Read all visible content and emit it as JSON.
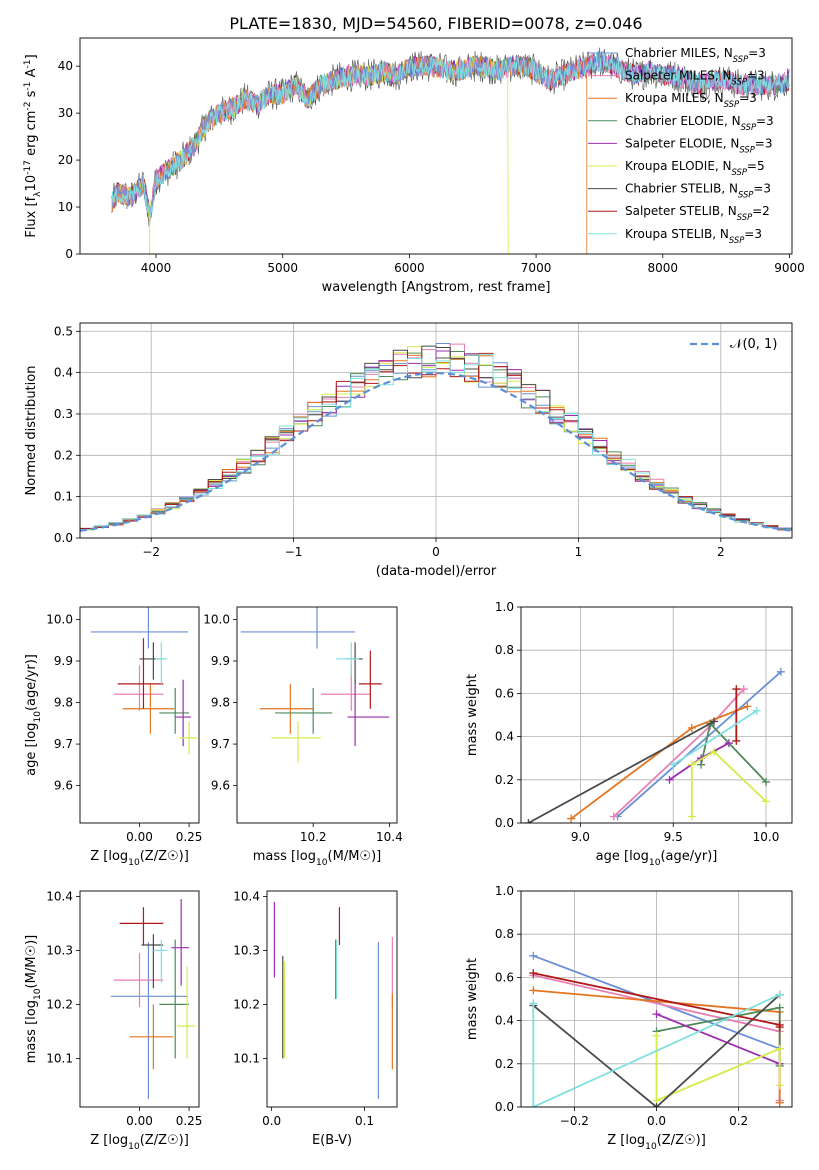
{
  "figure": {
    "title": "PLATE=1830, MJD=54560, FIBERID=0078, z=0.046"
  },
  "colors": {
    "chabrier_miles": "#6b8fd6",
    "salpeter_miles": "#e87fb4",
    "kroupa_miles": "#e37520",
    "chabrier_elodie": "#4f8a5a",
    "salpeter_elodie": "#9b2db0",
    "kroupa_elodie": "#d4ec4a",
    "chabrier_stelib": "#4a4a4a",
    "salpeter_stelib": "#b01818",
    "kroupa_stelib": "#7fe0e0",
    "normal": "#5b8fd9"
  },
  "chart_data": [
    {
      "id": "spectrum",
      "type": "line",
      "xlabel": "wavelength [Angstrom, rest frame]",
      "ylabel": "Flux [f_λ10^-17 erg cm^-2 s^-1 A^-1]",
      "xlim": [
        3400,
        9020
      ],
      "ylim": [
        0,
        46
      ],
      "xticks": [
        4000,
        5000,
        6000,
        7000,
        8000,
        9000
      ],
      "yticks": [
        0,
        10,
        20,
        30,
        40
      ],
      "grid": false,
      "legend_position": "right",
      "x": [
        3650,
        3700,
        3800,
        3900,
        3950,
        4000,
        4100,
        4200,
        4300,
        4400,
        4500,
        4600,
        4700,
        4800,
        4900,
        5000,
        5100,
        5200,
        5300,
        5400,
        5500,
        5600,
        5700,
        5800,
        5900,
        6000,
        6100,
        6200,
        6300,
        6400,
        6500,
        6600,
        6700,
        6800,
        6900,
        7000,
        7100,
        7200,
        7300,
        7400,
        7500,
        7600,
        7700,
        7800,
        7900,
        8000,
        8100,
        8200,
        8300,
        8400,
        8500,
        8600,
        8700,
        8800,
        8900,
        9000
      ],
      "y": [
        11,
        13,
        12,
        15,
        8,
        16,
        18,
        20,
        23,
        28,
        30,
        31,
        33,
        32,
        34,
        34,
        36,
        33,
        36,
        37,
        38,
        38,
        38,
        39,
        38,
        40,
        40,
        40,
        39,
        39,
        40,
        40,
        39,
        40,
        40,
        39,
        37,
        38,
        39,
        40,
        41,
        40,
        39,
        38,
        39,
        38,
        38,
        37,
        36,
        37,
        37,
        36,
        36,
        36,
        36,
        37
      ],
      "dropouts": [
        {
          "series": "Kroupa MILES",
          "x": 7400
        },
        {
          "series": "Kroupa ELODIE",
          "x": 6780
        },
        {
          "series": "Kroupa MILES",
          "x": 3950
        }
      ],
      "series": [
        {
          "name": "Chabrier MILES, N_SSP=3",
          "color_key": "chabrier_miles"
        },
        {
          "name": "Salpeter MILES, N_SSP=3",
          "color_key": "salpeter_miles"
        },
        {
          "name": "Kroupa MILES, N_SSP=3",
          "color_key": "kroupa_miles"
        },
        {
          "name": "Chabrier ELODIE, N_SSP=3",
          "color_key": "chabrier_elodie"
        },
        {
          "name": "Salpeter ELODIE, N_SSP=3",
          "color_key": "salpeter_elodie"
        },
        {
          "name": "Kroupa ELODIE, N_SSP=5",
          "color_key": "kroupa_elodie"
        },
        {
          "name": "Chabrier STELIB, N_SSP=3",
          "color_key": "chabrier_stelib"
        },
        {
          "name": "Salpeter STELIB, N_SSP=2",
          "color_key": "salpeter_stelib"
        },
        {
          "name": "Kroupa STELIB, N_SSP=3",
          "color_key": "kroupa_stelib"
        }
      ]
    },
    {
      "id": "residuals",
      "type": "histogram",
      "xlabel": "(data-model)/error",
      "ylabel": "Normed distribution",
      "xlim": [
        -2.5,
        2.5
      ],
      "ylim": [
        0,
        0.52
      ],
      "xticks": [
        -2,
        -1,
        0,
        1,
        2
      ],
      "yticks": [
        0.0,
        0.1,
        0.2,
        0.3,
        0.4,
        0.5
      ],
      "grid": true,
      "legend_position": "top-right",
      "legend": [
        "𝒩(0, 1)"
      ],
      "bin_width": 0.1,
      "reference_curve": "standard normal density"
    },
    {
      "id": "age_vs_Z",
      "type": "scatter",
      "xlabel": "Z [log10(Z/Z☉)]",
      "ylabel": "age  [log10(age/yr)]",
      "xlim": [
        -0.3,
        0.3
      ],
      "ylim": [
        9.51,
        10.03
      ],
      "xticks": [
        0.0,
        0.25
      ],
      "yticks": [
        9.6,
        9.7,
        9.8,
        9.9,
        10.0
      ],
      "points": [
        {
          "s": "chabrier_miles",
          "x": 0.045,
          "y": 9.97,
          "xerr": [
            0.29,
            0.2
          ],
          "yerr": [
            0.04,
            0.44
          ]
        },
        {
          "s": "salpeter_miles",
          "x": 0.0,
          "y": 9.82,
          "xerr": [
            0.13,
            0.12
          ],
          "yerr": [
            0.04,
            0.07
          ]
        },
        {
          "s": "kroupa_miles",
          "x": 0.055,
          "y": 9.785,
          "xerr": [
            0.14,
            0.12
          ],
          "yerr": [
            0.06,
            0.06
          ]
        },
        {
          "s": "chabrier_elodie",
          "x": 0.18,
          "y": 9.775,
          "xerr": [
            0.08,
            0.07
          ],
          "yerr": [
            0.05,
            0.06
          ]
        },
        {
          "s": "salpeter_elodie",
          "x": 0.22,
          "y": 9.765,
          "xerr": [
            0.04,
            0.04
          ],
          "yerr": [
            0.07,
            0.09
          ]
        },
        {
          "s": "kroupa_elodie",
          "x": 0.25,
          "y": 9.715,
          "xerr": [
            0.05,
            0.04
          ],
          "yerr": [
            0.04,
            0.04
          ]
        },
        {
          "s": "chabrier_stelib",
          "x": 0.07,
          "y": 9.905,
          "xerr": [
            0.07,
            0.05
          ],
          "yerr": [
            0.05,
            0.04
          ]
        },
        {
          "s": "salpeter_stelib",
          "x": 0.02,
          "y": 9.845,
          "xerr": [
            0.13,
            0.1
          ],
          "yerr": [
            0.06,
            0.11
          ]
        },
        {
          "s": "kroupa_stelib",
          "x": 0.11,
          "y": 9.905,
          "xerr": [
            0.03,
            0.03
          ],
          "yerr": [
            0.06,
            0.04
          ]
        }
      ]
    },
    {
      "id": "age_vs_mass",
      "type": "scatter",
      "xlabel": "mass [log10(M/M☉)]",
      "ylabel": "",
      "xlim": [
        10.0,
        10.42
      ],
      "ylim": [
        9.51,
        10.03
      ],
      "xticks": [
        10.2,
        10.4
      ],
      "yticks": [
        9.6,
        9.7,
        9.8,
        9.9,
        10.0
      ],
      "points": [
        {
          "s": "chabrier_miles",
          "x": 10.21,
          "y": 9.97,
          "xerr": [
            0.2,
            0.1
          ],
          "yerr": [
            0.04,
            0.44
          ]
        },
        {
          "s": "salpeter_miles",
          "x": 10.3,
          "y": 9.82,
          "xerr": [
            0.08,
            0.05
          ],
          "yerr": [
            0.04,
            0.07
          ]
        },
        {
          "s": "kroupa_miles",
          "x": 10.14,
          "y": 9.785,
          "xerr": [
            0.08,
            0.06
          ],
          "yerr": [
            0.06,
            0.06
          ]
        },
        {
          "s": "chabrier_elodie",
          "x": 10.2,
          "y": 9.775,
          "xerr": [
            0.1,
            0.05
          ],
          "yerr": [
            0.05,
            0.06
          ]
        },
        {
          "s": "salpeter_elodie",
          "x": 10.31,
          "y": 9.765,
          "xerr": [
            0.02,
            0.09
          ],
          "yerr": [
            0.07,
            0.09
          ]
        },
        {
          "s": "kroupa_elodie",
          "x": 10.16,
          "y": 9.715,
          "xerr": [
            0.07,
            0.06
          ],
          "yerr": [
            0.06,
            0.04
          ]
        },
        {
          "s": "chabrier_stelib",
          "x": 10.31,
          "y": 9.905,
          "xerr": [
            0.03,
            0.02
          ],
          "yerr": [
            0.06,
            0.04
          ]
        },
        {
          "s": "salpeter_stelib",
          "x": 10.35,
          "y": 9.845,
          "xerr": [
            0.03,
            0.03
          ],
          "yerr": [
            0.06,
            0.08
          ]
        },
        {
          "s": "kroupa_stelib",
          "x": 10.3,
          "y": 9.905,
          "xerr": [
            0.04,
            0.02
          ],
          "yerr": [
            0.04,
            0.04
          ]
        }
      ]
    },
    {
      "id": "weight_vs_age",
      "type": "line",
      "xlabel": "age  [log10(age/yr)]",
      "ylabel": "mass weight",
      "xlim": [
        8.68,
        10.14
      ],
      "ylim": [
        0.0,
        1.0
      ],
      "xticks": [
        9.0,
        9.5,
        10.0
      ],
      "yticks": [
        0.0,
        0.2,
        0.4,
        0.6,
        0.8,
        1.0
      ],
      "grid": true,
      "series": [
        {
          "s": "chabrier_miles",
          "x": [
            9.2,
            10.08
          ],
          "y": [
            0.03,
            0.7
          ]
        },
        {
          "s": "salpeter_miles",
          "x": [
            9.18,
            9.7,
            9.88
          ],
          "y": [
            0.03,
            0.45,
            0.62
          ]
        },
        {
          "s": "kroupa_miles",
          "x": [
            8.95,
            9.6,
            9.9
          ],
          "y": [
            0.02,
            0.44,
            0.54
          ]
        },
        {
          "s": "chabrier_elodie",
          "x": [
            9.65,
            9.7,
            10.0
          ],
          "y": [
            0.27,
            0.46,
            0.19
          ]
        },
        {
          "s": "salpeter_elodie",
          "x": [
            9.48,
            9.65,
            9.8
          ],
          "y": [
            0.2,
            0.3,
            0.37
          ]
        },
        {
          "s": "kroupa_elodie",
          "x": [
            9.6,
            9.6,
            9.72,
            10.0
          ],
          "y": [
            0.03,
            0.27,
            0.33,
            0.1
          ]
        },
        {
          "s": "chabrier_stelib",
          "x": [
            8.72,
            9.72
          ],
          "y": [
            0.0,
            0.47
          ]
        },
        {
          "s": "salpeter_stelib",
          "x": [
            9.84,
            9.84
          ],
          "y": [
            0.38,
            0.62
          ]
        },
        {
          "s": "kroupa_stelib",
          "x": [
            9.5,
            9.95
          ],
          "y": [
            0.27,
            0.52
          ]
        }
      ]
    },
    {
      "id": "mass_vs_Z",
      "type": "scatter",
      "xlabel": "Z [log10(Z/Z☉)]",
      "ylabel": "mass [log10(M/M☉)]",
      "xlim": [
        -0.3,
        0.3
      ],
      "ylim": [
        10.01,
        10.41
      ],
      "xticks": [
        0.0,
        0.25
      ],
      "yticks": [
        10.1,
        10.2,
        10.3,
        10.4
      ],
      "points": [
        {
          "s": "chabrier_miles",
          "x": 0.045,
          "y": 10.215,
          "xerr": [
            0.19,
            0.2
          ],
          "yerr": [
            0.19,
            0.1
          ]
        },
        {
          "s": "salpeter_miles",
          "x": 0.0,
          "y": 10.245,
          "xerr": [
            0.13,
            0.12
          ],
          "yerr": [
            0.05,
            0.05
          ]
        },
        {
          "s": "kroupa_miles",
          "x": 0.07,
          "y": 10.14,
          "xerr": [
            0.12,
            0.1
          ],
          "yerr": [
            0.06,
            0.06
          ]
        },
        {
          "s": "chabrier_elodie",
          "x": 0.18,
          "y": 10.2,
          "xerr": [
            0.08,
            0.07
          ],
          "yerr": [
            0.1,
            0.12
          ]
        },
        {
          "s": "salpeter_elodie",
          "x": 0.21,
          "y": 10.305,
          "xerr": [
            0.05,
            0.04
          ],
          "yerr": [
            0.07,
            0.09
          ]
        },
        {
          "s": "kroupa_elodie",
          "x": 0.24,
          "y": 10.16,
          "xerr": [
            0.05,
            0.04
          ],
          "yerr": [
            0.06,
            0.11
          ]
        },
        {
          "s": "chabrier_stelib",
          "x": 0.07,
          "y": 10.31,
          "xerr": [
            0.06,
            0.05
          ],
          "yerr": [
            0.08,
            0.02
          ]
        },
        {
          "s": "salpeter_stelib",
          "x": 0.02,
          "y": 10.35,
          "xerr": [
            0.12,
            0.1
          ],
          "yerr": [
            0.04,
            0.03
          ]
        },
        {
          "s": "kroupa_stelib",
          "x": 0.11,
          "y": 10.3,
          "xerr": [
            0.04,
            0.03
          ],
          "yerr": [
            0.06,
            0.02
          ]
        }
      ]
    },
    {
      "id": "mass_vs_ebv",
      "type": "scatter",
      "xlabel": "E(B-V)",
      "ylabel": "",
      "xlim": [
        -0.005,
        0.135
      ],
      "ylim": [
        10.01,
        10.41
      ],
      "xticks": [
        0.0,
        0.1
      ],
      "yticks": [
        10.1,
        10.2,
        10.3,
        10.4
      ],
      "points": [
        {
          "s": "chabrier_miles",
          "x": 0.115,
          "y": 10.215,
          "xerr": [
            0.0,
            0.0
          ],
          "yerr": [
            0.19,
            0.1
          ]
        },
        {
          "s": "salpeter_miles",
          "x": 0.13,
          "y": 10.245,
          "xerr": [
            0.0,
            0.0
          ],
          "yerr": [
            0.05,
            0.08
          ]
        },
        {
          "s": "kroupa_miles",
          "x": 0.13,
          "y": 10.14,
          "xerr": [
            0.0,
            0.0
          ],
          "yerr": [
            0.06,
            0.08
          ]
        },
        {
          "s": "chabrier_elodie",
          "x": 0.069,
          "y": 10.25,
          "xerr": [
            0.0,
            0.0
          ],
          "yerr": [
            0.04,
            0.07
          ]
        },
        {
          "s": "salpeter_elodie",
          "x": 0.003,
          "y": 10.33,
          "xerr": [
            0.0,
            0.0
          ],
          "yerr": [
            0.08,
            0.06
          ]
        },
        {
          "s": "kroupa_elodie",
          "x": 0.014,
          "y": 10.2,
          "xerr": [
            0.0,
            0.0
          ],
          "yerr": [
            0.1,
            0.08
          ]
        },
        {
          "s": "chabrier_stelib",
          "x": 0.012,
          "y": 10.2,
          "xerr": [
            0.0,
            0.0
          ],
          "yerr": [
            0.1,
            0.09
          ]
        },
        {
          "s": "salpeter_stelib",
          "x": 0.073,
          "y": 10.34,
          "xerr": [
            0.0,
            0.0
          ],
          "yerr": [
            0.03,
            0.04
          ]
        },
        {
          "s": "kroupa_stelib",
          "x": 0.07,
          "y": 10.26,
          "xerr": [
            0.0,
            0.0
          ],
          "yerr": [
            0.05,
            0.06
          ]
        }
      ]
    },
    {
      "id": "weight_vs_Z",
      "type": "line",
      "xlabel": "Z [log10(Z/Z☉)]",
      "ylabel": "mass weight",
      "xlim": [
        -0.33,
        0.33
      ],
      "ylim": [
        0.0,
        1.0
      ],
      "xticks": [
        -0.2,
        0.0,
        0.2
      ],
      "yticks": [
        0.0,
        0.2,
        0.4,
        0.6,
        0.8,
        1.0
      ],
      "grid": true,
      "series": [
        {
          "s": "chabrier_miles",
          "x": [
            -0.3,
            0.3
          ],
          "y": [
            0.7,
            0.27
          ]
        },
        {
          "s": "salpeter_miles",
          "x": [
            -0.3,
            0.3,
            0.3
          ],
          "y": [
            0.61,
            0.35,
            0.03
          ]
        },
        {
          "s": "kroupa_miles",
          "x": [
            -0.3,
            0.3,
            0.3
          ],
          "y": [
            0.54,
            0.44,
            0.02
          ]
        },
        {
          "s": "chabrier_elodie",
          "x": [
            0.0,
            0.3,
            0.3
          ],
          "y": [
            0.35,
            0.46,
            0.19
          ]
        },
        {
          "s": "salpeter_elodie",
          "x": [
            0.0,
            0.3
          ],
          "y": [
            0.43,
            0.2
          ]
        },
        {
          "s": "kroupa_elodie",
          "x": [
            0.0,
            0.0,
            0.3,
            0.3
          ],
          "y": [
            0.33,
            0.03,
            0.27,
            0.1
          ]
        },
        {
          "s": "chabrier_stelib",
          "x": [
            -0.3,
            0.0,
            0.3
          ],
          "y": [
            0.47,
            0.0,
            0.52
          ]
        },
        {
          "s": "salpeter_stelib",
          "x": [
            -0.3,
            0.3,
            0.3
          ],
          "y": [
            0.62,
            0.38,
            0.37
          ]
        },
        {
          "s": "kroupa_stelib",
          "x": [
            -0.3,
            -0.3,
            0.3
          ],
          "y": [
            0.48,
            0.0,
            0.52
          ]
        }
      ]
    }
  ]
}
